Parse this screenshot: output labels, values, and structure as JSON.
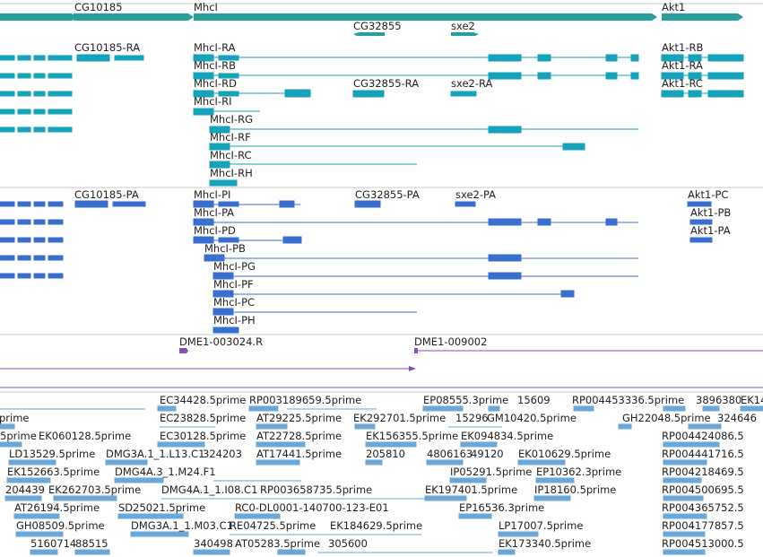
{
  "colors": {
    "gene": "#2a9d9d",
    "mrna": "#16a2b8",
    "protein": "#3b6fcf",
    "region": "#8a4fb5",
    "est": "#6ba8d8",
    "divider": "#c8c8c8"
  },
  "gene_track": {
    "genes": [
      {
        "label": "CG10185",
        "strand": "+"
      },
      {
        "label": "MhcI",
        "strand": "+"
      },
      {
        "label": "Akt1",
        "strand": "+"
      },
      {
        "label": "CG32855",
        "strand": "-"
      },
      {
        "label": "sxe2",
        "strand": "+"
      }
    ]
  },
  "transcript_track": {
    "transcripts": [
      {
        "label": "CG10185-RA"
      },
      {
        "label": "MhcI-RA"
      },
      {
        "label": "Akt1-RB"
      },
      {
        "label": "MhcI-RB"
      },
      {
        "label": "Akt1-RA"
      },
      {
        "label": "MhcI-RD"
      },
      {
        "label": "CG32855-RA"
      },
      {
        "label": "sxe2-RA"
      },
      {
        "label": "Akt1-RC"
      },
      {
        "label": "MhcI-RI"
      },
      {
        "label": "MhcI-RG"
      },
      {
        "label": "MhcI-RF"
      },
      {
        "label": "MhcI-RC"
      },
      {
        "label": "MhcI-RH"
      }
    ]
  },
  "protein_track": {
    "proteins": [
      {
        "label": "CG10185-PA"
      },
      {
        "label": "MhcI-PI"
      },
      {
        "label": "CG32855-PA"
      },
      {
        "label": "sxe2-PA"
      },
      {
        "label": "Akt1-PC"
      },
      {
        "label": "MhcI-PA"
      },
      {
        "label": "Akt1-PB"
      },
      {
        "label": "MhcI-PD"
      },
      {
        "label": "Akt1-PA"
      },
      {
        "label": "MhcI-PB"
      },
      {
        "label": "MhcI-PG"
      },
      {
        "label": "MhcI-PF"
      },
      {
        "label": "MhcI-PC"
      },
      {
        "label": "MhcI-PH"
      }
    ]
  },
  "region_track": {
    "features": [
      {
        "label": "DME1-003024.R"
      },
      {
        "label": "DME1-009002"
      }
    ]
  },
  "est_track": {
    "labels": [
      "EC34428.5prime",
      "RP003189659.5prime",
      "EP08555.3prime",
      "15609",
      "RP004453336.5prime",
      "3896380",
      "EK14",
      "prime",
      "EC23828.5prime",
      "AT29225.5prime",
      "EK292701.5prime",
      "15296",
      "GM10420.5prime",
      "GH22048.5prime",
      "324646",
      "5prime",
      "EK060128.5prime",
      "EC30128.5prime",
      "AT22728.5prime",
      "EK156355.5prime",
      "EK094834.5prime",
      "RP004424086.5",
      "LD13529.5prime",
      "DMG3A.1_1.L13.C1",
      "324203",
      "AT17441.5prime",
      "205810",
      "4806163",
      "49120",
      "EK010629.5prime",
      "RP004441716.5",
      "EK152663.5prime",
      "DMG4A.3_1.M24.F1",
      "IP05291.5prime",
      "EP10362.3prime",
      "RP004218469.5",
      "204439",
      "EK262703.5prime",
      "DMG4A.1_1.I08.C1",
      "RP003658735.5prime",
      "EK197401.5prime",
      "IP18160.5prime",
      "RP004500695.5",
      "AT26194.5prime",
      "SD25021.5prime",
      "RC0-DL0001-140700-123-E01",
      "EP16536.3prime",
      "RP004365752.5",
      "GH08509.5prime",
      "DMG3A.1_1.M03.C1",
      "RE04725.5prime",
      "EK184629.5prime",
      "LP17007.5prime",
      "RP004177857.5",
      "5160714",
      "88515",
      "340498",
      "AT05283.5prime",
      "305600",
      "EK173340.5prime",
      "RP004513000.5"
    ]
  }
}
